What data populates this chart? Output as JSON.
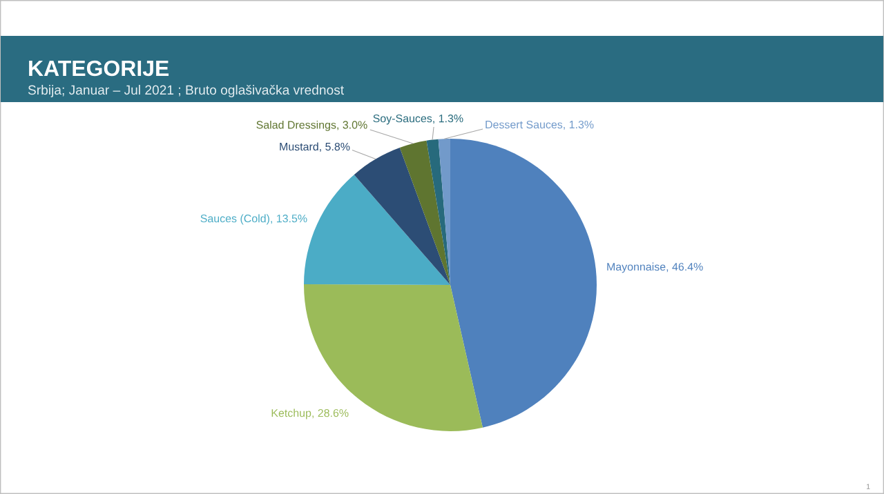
{
  "chart_data": {
    "type": "pie",
    "title": "KATEGORIJE",
    "subtitle": "Srbija; Januar – Jul 2021 ; Bruto oglašivačka vrednost",
    "categories": [
      "Mayonnaise",
      "Ketchup",
      "Sauces (Cold)",
      "Mustard",
      "Salad Dressings",
      "Soy-Sauces",
      "Dessert Sauces"
    ],
    "values": [
      46.4,
      28.6,
      13.5,
      5.8,
      3.0,
      1.3,
      1.3
    ],
    "colors": [
      "#4f81bd",
      "#9bbb59",
      "#4bacc6",
      "#2c4d75",
      "#5f7530",
      "#276a7c",
      "#729aca"
    ],
    "value_labels": [
      "46.4%",
      "28.6%",
      "13.5%",
      "5.8%",
      "3.0%",
      "1.3%",
      "1.3%"
    ],
    "annotations": [
      "1"
    ]
  }
}
